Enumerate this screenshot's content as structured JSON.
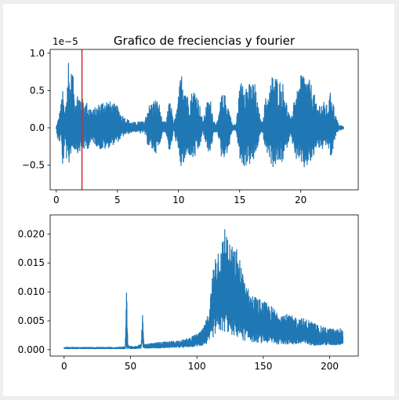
{
  "chart_data": [
    {
      "type": "line",
      "title": "Grafico de freciencias y fourier",
      "offset_label": "1e−5",
      "xlim": [
        -0.5,
        24.7
      ],
      "ylim": [
        -0.83,
        1.05
      ],
      "xticks": [
        0,
        5,
        10,
        15,
        20
      ],
      "yticks": [
        -0.5,
        0.0,
        0.5,
        1.0
      ],
      "ytick_labels": [
        "−0.5",
        "0.0",
        "0.5",
        "1.0"
      ],
      "series_color": "#1f77b4",
      "marker_line": {
        "x": 2.1,
        "color": "#d62728"
      },
      "envelope": {
        "x": [
          0,
          0.2,
          0.4,
          0.5,
          0.7,
          0.9,
          1.0,
          1.1,
          1.3,
          1.5,
          1.8,
          2.1,
          2.5,
          3.0,
          3.3,
          3.6,
          4.0,
          4.5,
          5.0,
          5.3,
          5.6,
          6.0,
          6.3,
          6.6,
          6.9,
          7.2,
          7.5,
          7.8,
          8.1,
          8.4,
          8.7,
          9.0,
          9.3,
          9.6,
          9.9,
          10.2,
          10.5,
          10.8,
          11.1,
          11.4,
          11.7,
          12.0,
          12.3,
          12.6,
          12.9,
          13.2,
          13.5,
          13.8,
          14.1,
          14.4,
          14.7,
          15.0,
          15.3,
          15.6,
          15.9,
          16.2,
          16.5,
          16.8,
          17.1,
          17.4,
          17.7,
          18.0,
          18.3,
          18.6,
          18.9,
          19.2,
          19.5,
          19.8,
          20.1,
          20.4,
          20.7,
          21.0,
          21.3,
          21.6,
          21.9,
          22.2,
          22.5,
          22.8,
          23.1,
          23.5
        ],
        "upper": [
          0.02,
          0.15,
          0.35,
          0.55,
          0.2,
          0.65,
          1.0,
          0.6,
          0.85,
          0.45,
          0.5,
          0.4,
          0.35,
          0.25,
          0.3,
          0.35,
          0.4,
          0.35,
          0.3,
          0.2,
          0.15,
          0.1,
          0.08,
          0.08,
          0.1,
          0.08,
          0.3,
          0.35,
          0.4,
          0.35,
          0.08,
          0.1,
          0.45,
          0.05,
          0.3,
          0.75,
          0.7,
          0.4,
          0.5,
          0.55,
          0.35,
          0.08,
          0.35,
          0.4,
          0.1,
          0.08,
          0.45,
          0.45,
          0.3,
          0.05,
          0.05,
          0.55,
          0.75,
          0.6,
          0.6,
          0.65,
          0.3,
          0.05,
          0.4,
          0.5,
          0.75,
          0.7,
          0.65,
          0.6,
          0.3,
          0.1,
          0.5,
          0.5,
          0.8,
          0.7,
          0.65,
          0.55,
          0.3,
          0.35,
          0.35,
          0.3,
          0.55,
          0.2,
          0.05,
          0.02
        ],
        "lower": [
          -0.02,
          -0.25,
          -0.1,
          -0.75,
          -0.15,
          -0.55,
          -0.6,
          -0.4,
          -0.3,
          -0.3,
          -0.35,
          -0.3,
          -0.3,
          -0.2,
          -0.25,
          -0.3,
          -0.3,
          -0.25,
          -0.2,
          -0.15,
          -0.1,
          -0.08,
          -0.06,
          -0.06,
          -0.08,
          -0.06,
          -0.25,
          -0.3,
          -0.35,
          -0.3,
          -0.06,
          -0.08,
          -0.4,
          -0.04,
          -0.3,
          -0.55,
          -0.5,
          -0.35,
          -0.45,
          -0.4,
          -0.3,
          -0.06,
          -0.3,
          -0.35,
          -0.08,
          -0.06,
          -0.4,
          -0.4,
          -0.3,
          -0.04,
          -0.04,
          -0.45,
          -0.55,
          -0.5,
          -0.5,
          -0.45,
          -0.25,
          -0.04,
          -0.3,
          -0.4,
          -0.55,
          -0.5,
          -0.5,
          -0.45,
          -0.25,
          -0.08,
          -0.45,
          -0.4,
          -0.6,
          -0.55,
          -0.5,
          -0.45,
          -0.25,
          -0.3,
          -0.3,
          -0.25,
          -0.45,
          -0.15,
          -0.04,
          -0.02
        ]
      }
    },
    {
      "type": "line",
      "title": "",
      "xlim": [
        -10.5,
        221.5
      ],
      "ylim": [
        -0.0011,
        0.0233
      ],
      "xticks": [
        0,
        50,
        100,
        150,
        200
      ],
      "yticks": [
        0.0,
        0.005,
        0.01,
        0.015,
        0.02
      ],
      "ytick_labels": [
        "0.000",
        "0.005",
        "0.010",
        "0.015",
        "0.020"
      ],
      "series_color": "#1f77b4",
      "envelope": {
        "x": [
          0,
          10,
          20,
          30,
          40,
          46,
          47,
          47.5,
          48,
          49,
          55,
          58,
          59,
          59.5,
          60,
          61,
          70,
          80,
          90,
          95,
          100,
          103,
          106,
          108,
          110,
          112,
          114,
          116,
          118,
          120,
          121,
          122,
          123,
          124,
          126,
          128,
          130,
          132,
          134,
          136,
          138,
          140,
          145,
          150,
          155,
          160,
          165,
          170,
          175,
          180,
          185,
          190,
          195,
          200,
          205,
          208,
          210
        ],
        "upper": [
          0.0005,
          0.0005,
          0.0005,
          0.0005,
          0.0005,
          0.0006,
          0.011,
          0.006,
          0.001,
          0.0007,
          0.0008,
          0.001,
          0.007,
          0.004,
          0.0012,
          0.001,
          0.0013,
          0.0015,
          0.0018,
          0.0022,
          0.0028,
          0.0032,
          0.0045,
          0.006,
          0.009,
          0.014,
          0.0175,
          0.018,
          0.019,
          0.0195,
          0.0225,
          0.021,
          0.02,
          0.018,
          0.019,
          0.017,
          0.018,
          0.016,
          0.014,
          0.013,
          0.011,
          0.01,
          0.0092,
          0.0085,
          0.0078,
          0.007,
          0.0065,
          0.006,
          0.0058,
          0.0055,
          0.0052,
          0.0045,
          0.004,
          0.0038,
          0.0036,
          0.0038,
          0.0034
        ],
        "lower": [
          0.0001,
          0.0001,
          0.0001,
          0.0001,
          0.0001,
          0.0001,
          0.0002,
          0.0001,
          0.0001,
          0.0001,
          0.0001,
          0.0002,
          0.0002,
          0.0002,
          0.0002,
          0.0002,
          0.0002,
          0.0003,
          0.0003,
          0.0004,
          0.0005,
          0.0006,
          0.0008,
          0.001,
          0.0015,
          0.002,
          0.0025,
          0.003,
          0.003,
          0.0028,
          0.003,
          0.003,
          0.0028,
          0.0028,
          0.0025,
          0.0022,
          0.002,
          0.0018,
          0.0016,
          0.0015,
          0.0014,
          0.0013,
          0.0012,
          0.0011,
          0.001,
          0.0009,
          0.0009,
          0.0008,
          0.0008,
          0.0008,
          0.0007,
          0.0007,
          0.0007,
          0.0007,
          0.0007,
          0.0008,
          0.0008
        ]
      }
    }
  ]
}
